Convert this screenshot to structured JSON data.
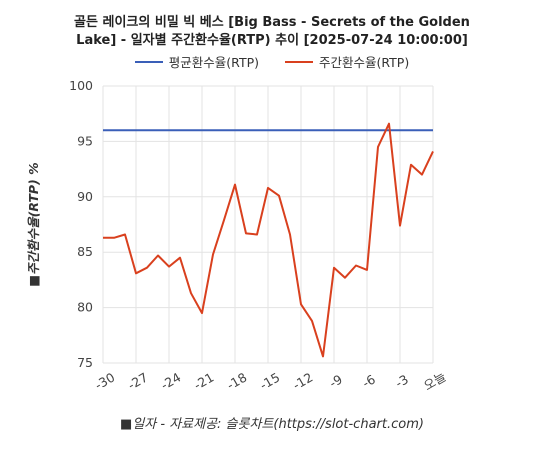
{
  "title_line1": "골든 레이크의 비밀 빅 베스 [Big Bass - Secrets of the Golden",
  "title_line2": "Lake] - 일자별 주간환수율(RTP) 추이 [2025-07-24 10:00:00]",
  "legend": {
    "avg_label": "평균환수율(RTP)",
    "weekly_label": "주간환수율(RTP)"
  },
  "colors": {
    "avg": "#3a5fb8",
    "weekly": "#d9401e"
  },
  "chart_data": {
    "type": "line",
    "title": "골든 레이크의 비밀 빅 베스 [Big Bass - Secrets of the Golden Lake] - 일자별 주간환수율(RTP) 추이 [2025-07-24 10:00:00]",
    "xlabel": "■일자 - 자료제공: 슬롯차트(https://slot-chart.com)",
    "ylabel": "■주간환수율(RTP) %",
    "ylim": [
      75,
      100
    ],
    "yticks": [
      75,
      80,
      85,
      90,
      95,
      100
    ],
    "xlim": [
      -30,
      0
    ],
    "xticks": [
      {
        "value": -30,
        "label": "-30"
      },
      {
        "value": -27,
        "label": "-27"
      },
      {
        "value": -24,
        "label": "-24"
      },
      {
        "value": -21,
        "label": "-21"
      },
      {
        "value": -18,
        "label": "-18"
      },
      {
        "value": -15,
        "label": "-15"
      },
      {
        "value": -12,
        "label": "-12"
      },
      {
        "value": -9,
        "label": "-9"
      },
      {
        "value": -6,
        "label": "-6"
      },
      {
        "value": -3,
        "label": "-3"
      },
      {
        "value": 0,
        "label": "오늘"
      }
    ],
    "grid": true,
    "legend_position": "top",
    "series": [
      {
        "name": "평균환수율(RTP)",
        "x": [
          -30,
          0
        ],
        "values": [
          96.0,
          96.0
        ]
      },
      {
        "name": "주간환수율(RTP)",
        "x": [
          -30,
          -29,
          -28,
          -27,
          -26,
          -25,
          -24,
          -23,
          -22,
          -21,
          -20,
          -19,
          -18,
          -17,
          -16,
          -15,
          -14,
          -13,
          -12,
          -11,
          -10,
          -9,
          -8,
          -7,
          -6,
          -5,
          -4,
          -3,
          -2,
          -1,
          0
        ],
        "values": [
          86.3,
          86.3,
          86.6,
          83.1,
          83.6,
          84.7,
          83.7,
          84.5,
          81.3,
          79.5,
          84.8,
          87.9,
          91.1,
          86.7,
          86.6,
          90.8,
          90.1,
          86.6,
          80.3,
          78.8,
          75.6,
          83.6,
          82.7,
          83.8,
          83.4,
          94.5,
          96.6,
          87.4,
          92.9,
          92.0,
          94.1
        ]
      }
    ]
  }
}
